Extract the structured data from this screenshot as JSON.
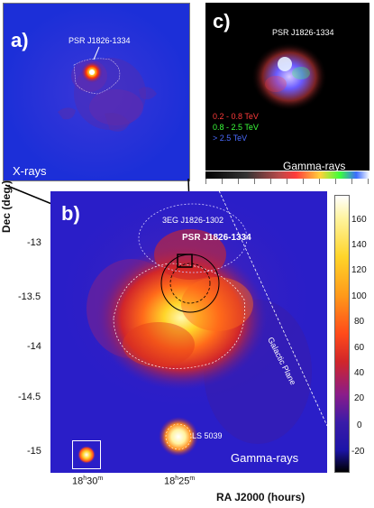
{
  "panel_a": {
    "label": "a)",
    "source_label": "PSR J1826-1334",
    "band": "X-rays"
  },
  "panel_c": {
    "label": "c)",
    "source_label": "PSR J1826-1334",
    "legend": [
      {
        "text": "0.2 - 0.8 TeV",
        "color": "#ff3b3b"
      },
      {
        "text": "0.8 - 2.5 TeV",
        "color": "#3bff3b"
      },
      {
        "text": "> 2.5 TeV",
        "color": "#4b6bff"
      }
    ],
    "band": "Gamma-rays"
  },
  "panel_b": {
    "label": "b)",
    "band": "Gamma-rays",
    "sources": {
      "egret": "3EG J1826-1302",
      "pulsar": "PSR J1826-1334",
      "plane": "Galactic Plane",
      "ls": "LS 5039"
    },
    "y_axis_title": "Dec (deg.)",
    "x_axis_title": "RA J2000 (hours)",
    "y_ticks": [
      "-13",
      "-13.5",
      "-14",
      "-14.5",
      "-15"
    ],
    "x_ticks": [
      {
        "main": "18",
        "sup1": "h",
        "mid": "30",
        "sup2": "m"
      },
      {
        "main": "18",
        "sup1": "h",
        "mid": "25",
        "sup2": "m"
      }
    ],
    "colorbar_ticks": [
      "160",
      "140",
      "120",
      "100",
      "80",
      "60",
      "40",
      "20",
      "0",
      "-20"
    ]
  }
}
